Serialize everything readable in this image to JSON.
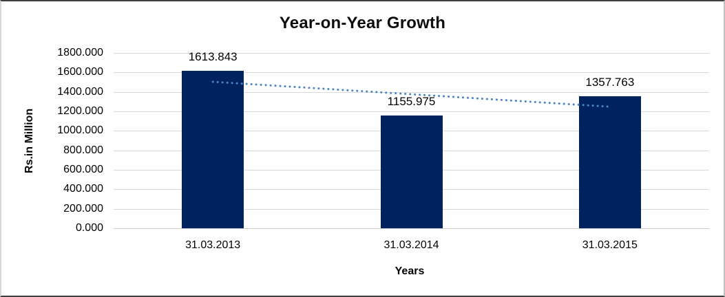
{
  "chart_data": {
    "type": "bar",
    "title": "Year-on-Year Growth",
    "xlabel": "Years",
    "ylabel": "Rs.in Million",
    "categories": [
      "31.03.2013",
      "31.03.2014",
      "31.03.2015"
    ],
    "values": [
      1613.843,
      1155.975,
      1357.763
    ],
    "data_labels": [
      "1613.843",
      "1155.975",
      "1357.763"
    ],
    "ylim": [
      0,
      1800
    ],
    "ytick_step": 200,
    "ytick_labels": [
      "0.000",
      "200.000",
      "400.000",
      "600.000",
      "800.000",
      "1000.000",
      "1200.000",
      "1400.000",
      "1600.000",
      "1800.000"
    ],
    "grid": true,
    "legend": "none",
    "bar_color": "#00235f",
    "gridline_color": "#d9d9d9",
    "text_color": "#000000",
    "trendline": {
      "type": "linear",
      "style": "dotted",
      "color": "#4a85c6",
      "values": [
        1503.86,
        1375.86,
        1247.86
      ]
    }
  }
}
